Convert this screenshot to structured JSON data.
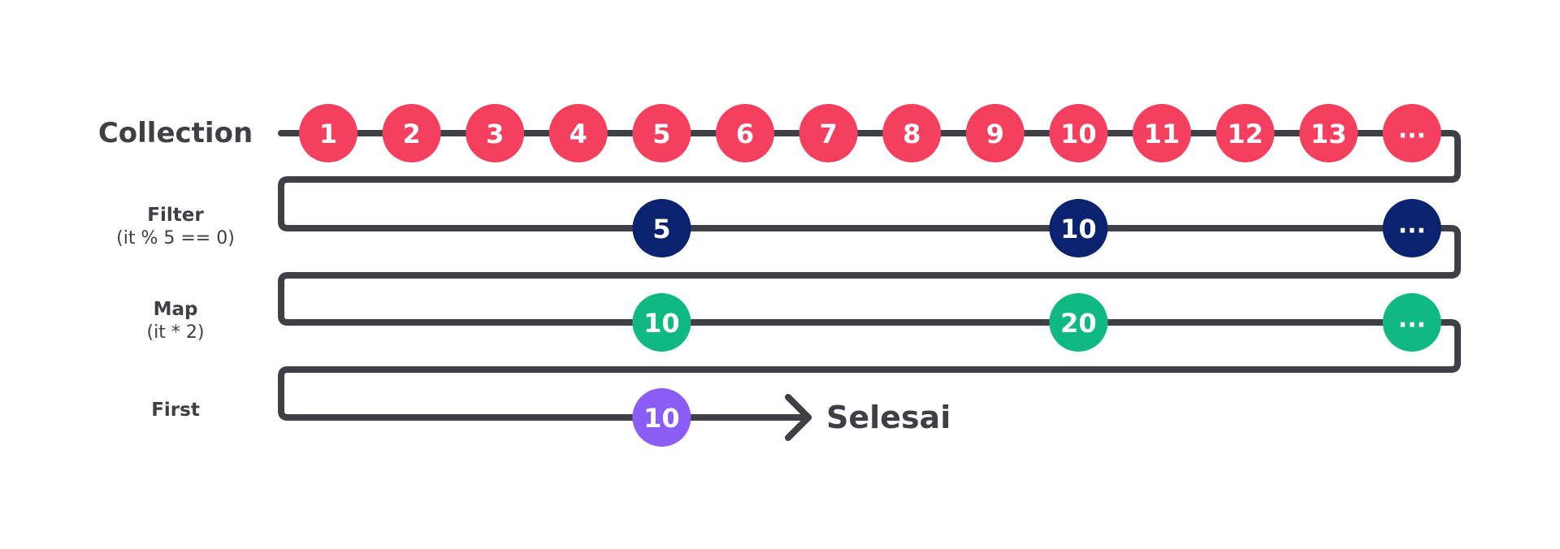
{
  "colors": {
    "line": "#3f3f46",
    "collection": "#f43f5e",
    "filter": "#0b2270",
    "map": "#10b981",
    "first": "#8b5cf6"
  },
  "rows": [
    {
      "id": "collection",
      "label": "Collection",
      "sublabel": "",
      "nodes": [
        "1",
        "2",
        "3",
        "4",
        "5",
        "6",
        "7",
        "8",
        "9",
        "10",
        "11",
        "12",
        "13",
        "..."
      ],
      "slots": [
        1,
        2,
        3,
        4,
        5,
        6,
        7,
        8,
        9,
        10,
        11,
        12,
        13,
        14
      ]
    },
    {
      "id": "filter",
      "label": "Filter",
      "sublabel": "(it % 5 == 0)",
      "nodes": [
        "5",
        "10",
        "..."
      ],
      "slots": [
        5,
        10,
        14
      ]
    },
    {
      "id": "map",
      "label": "Map",
      "sublabel": "(it * 2)",
      "nodes": [
        "10",
        "20",
        "..."
      ],
      "slots": [
        5,
        10,
        14
      ]
    },
    {
      "id": "first",
      "label": "First",
      "sublabel": "",
      "nodes": [
        "10"
      ],
      "slots": [
        5
      ]
    }
  ],
  "end_label": "Selesai"
}
